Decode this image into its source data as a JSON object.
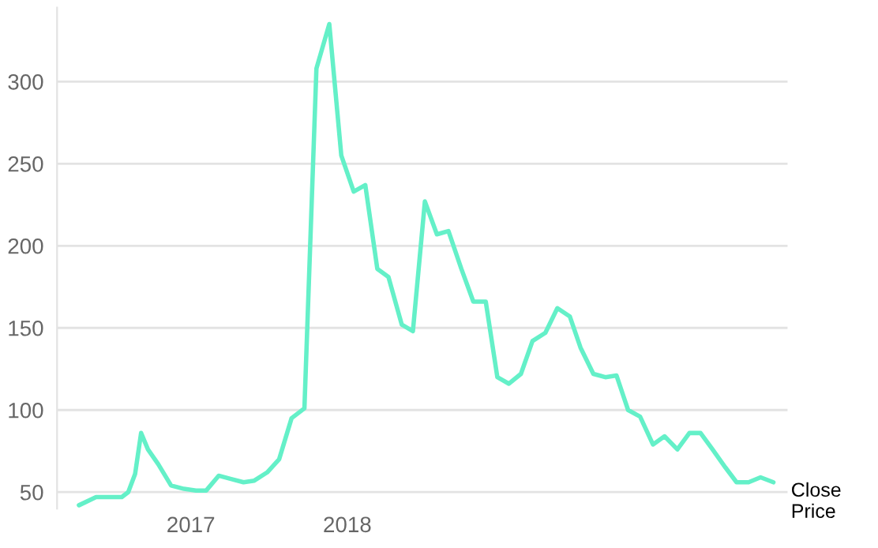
{
  "chart_data": {
    "type": "line",
    "x": [
      "2016-04-15",
      "2016-05-25",
      "2016-06-24",
      "2016-07-24",
      "2016-08-08",
      "2016-08-24",
      "2016-09-07",
      "2016-09-23",
      "2016-10-17",
      "2016-11-16",
      "2016-12-16",
      "2017-01-13",
      "2017-02-06",
      "2017-03-07",
      "2017-04-05",
      "2017-05-04",
      "2017-05-29",
      "2017-06-28",
      "2017-07-26",
      "2017-08-24",
      "2017-09-23",
      "2017-10-21",
      "2017-11-20",
      "2017-12-18",
      "2018-01-16",
      "2018-02-12",
      "2018-03-12",
      "2018-04-07",
      "2018-05-08",
      "2018-06-03",
      "2018-07-01",
      "2018-07-29",
      "2018-08-25",
      "2018-09-24",
      "2018-10-22",
      "2018-11-20",
      "2018-12-17",
      "2019-01-13",
      "2019-02-10",
      "2019-03-09",
      "2019-04-08",
      "2019-05-06",
      "2019-06-04",
      "2019-06-29",
      "2019-07-29",
      "2019-08-26",
      "2019-09-21",
      "2019-10-18",
      "2019-11-15",
      "2019-12-15",
      "2020-01-11",
      "2020-02-10",
      "2020-03-09",
      "2020-04-04",
      "2020-05-02",
      "2020-06-01",
      "2020-06-27",
      "2020-07-25",
      "2020-08-22",
      "2020-09-21"
    ],
    "series": [
      {
        "name": "Close Price",
        "color": "#64f0c8",
        "values": [
          42,
          47,
          47,
          47,
          50,
          61,
          86,
          76,
          67,
          54,
          52,
          51,
          51,
          60,
          58,
          56,
          57,
          62,
          70,
          95,
          101,
          308,
          335,
          255,
          233,
          237,
          186,
          181,
          152,
          148,
          227,
          207,
          209,
          186,
          166,
          166,
          120,
          116,
          122,
          142,
          147,
          162,
          157,
          138,
          122,
          120,
          121,
          100,
          96,
          79,
          84,
          76,
          86,
          86,
          76,
          65,
          56,
          56,
          59,
          56
        ]
      }
    ],
    "xlim": [
      "2016-02-24",
      "2020-10-24"
    ],
    "xticks": [
      {
        "value": "2017-01-01",
        "label": "2017"
      },
      {
        "value": "2018-01-01",
        "label": "2018"
      }
    ],
    "ylim": [
      40,
      345
    ],
    "yticks": [
      50,
      100,
      150,
      200,
      250,
      300
    ],
    "grid": "y",
    "line_style": "solid",
    "marker": "none"
  }
}
